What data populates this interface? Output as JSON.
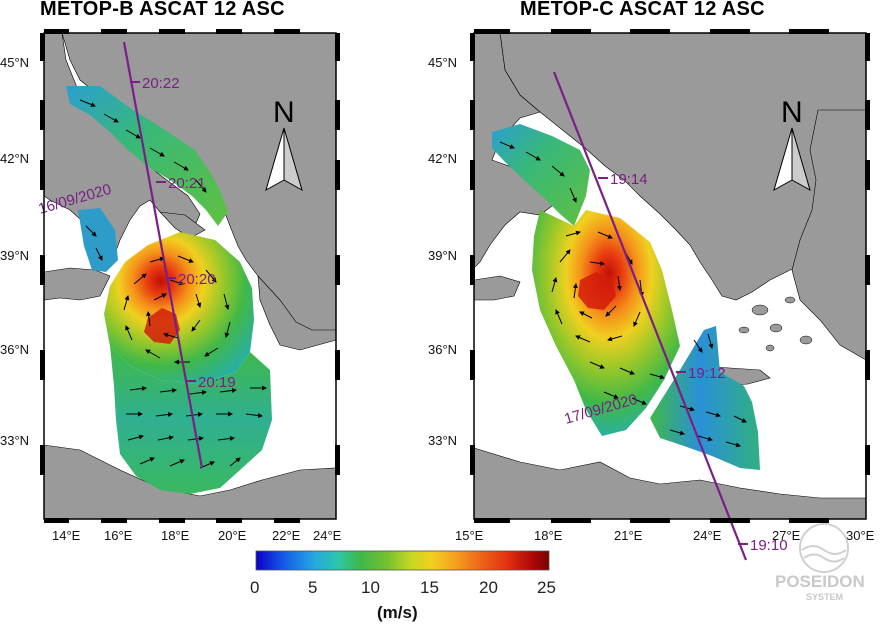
{
  "panels": [
    {
      "title": "METOP-B ASCAT 12 ASC",
      "lat_labels": [
        "45°N",
        "42°N",
        "39°N",
        "36°N",
        "33°N"
      ],
      "lon_labels": [
        "14°E",
        "16°E",
        "18°E",
        "20°E",
        "22°E",
        "24°E"
      ],
      "track_times": [
        "20:22",
        "20:21",
        "20:20",
        "20:19"
      ],
      "track_date": "16/09/2020",
      "north_label": "N"
    },
    {
      "title": "METOP-C ASCAT 12 ASC",
      "lat_labels": [
        "45°N",
        "42°N",
        "39°N",
        "36°N",
        "33°N"
      ],
      "lon_labels": [
        "15°E",
        "18°E",
        "21°E",
        "24°E",
        "27°E",
        "30°E"
      ],
      "track_times": [
        "19:14",
        "19:12",
        "19:10"
      ],
      "track_date": "17/09/2020",
      "north_label": "N"
    }
  ],
  "colorbar": {
    "ticks": [
      "0",
      "5",
      "10",
      "15",
      "20",
      "25"
    ],
    "unit": "(m/s)",
    "range": [
      0,
      25
    ],
    "colors": [
      "#0b00c8",
      "#1560e8",
      "#26a8e0",
      "#2bc7a8",
      "#40b848",
      "#78c030",
      "#c8d820",
      "#f0d020",
      "#f5a020",
      "#f06a18",
      "#e03010",
      "#b00808",
      "#7a0000"
    ]
  },
  "logo": {
    "name": "POSEIDON",
    "sub": "SYSTEM"
  },
  "colors": {
    "land": "#9a9a9a",
    "sea": "#ffffff",
    "track": "#7a1f86",
    "frame": "#000000"
  }
}
